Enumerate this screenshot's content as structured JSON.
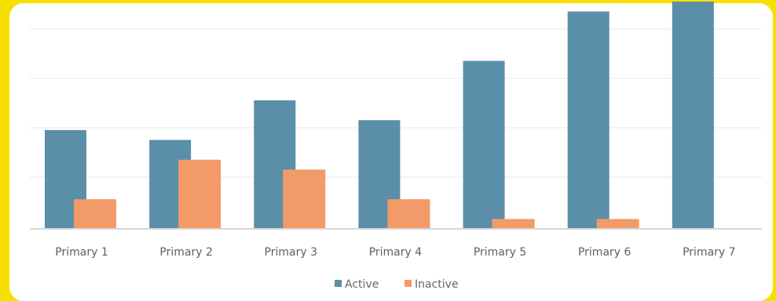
{
  "chart_data": {
    "type": "bar",
    "categories": [
      "Primary 1",
      "Primary 2",
      "Primary 3",
      "Primary 4",
      "Primary 5",
      "Primary 6",
      "Primary 7"
    ],
    "series": [
      {
        "name": "Active",
        "values": [
          100,
          90,
          130,
          110,
          170,
          220,
          230
        ],
        "color": "#5b8ea9"
      },
      {
        "name": "Inactive",
        "values": [
          30,
          70,
          60,
          30,
          10,
          10,
          0
        ],
        "color": "#f29b69"
      }
    ],
    "ylim": [
      0,
      230
    ],
    "gridlines": true,
    "legend_position": "bottom-center"
  }
}
